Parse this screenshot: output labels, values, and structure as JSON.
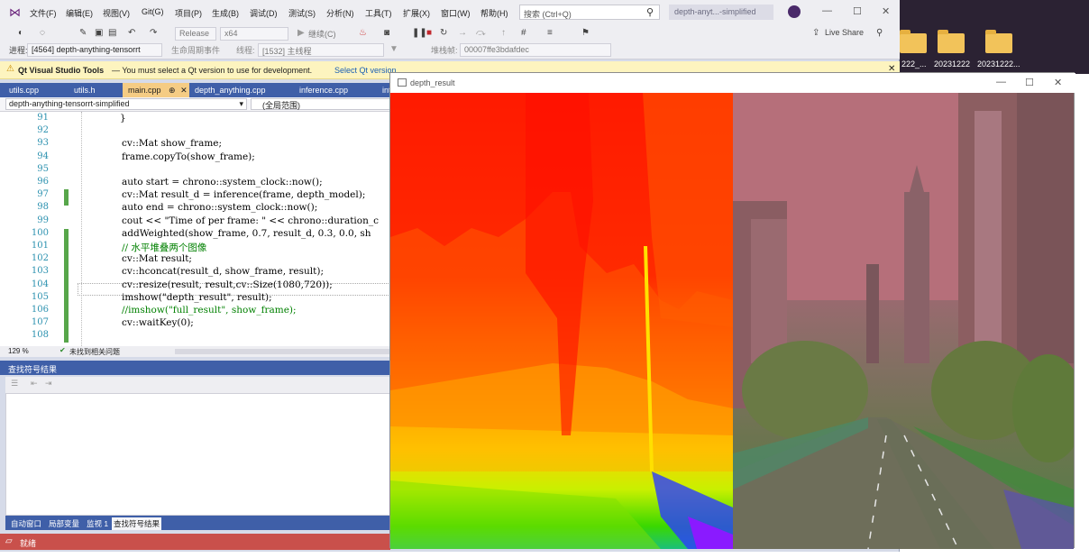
{
  "desktop": {
    "folders": [
      {
        "label": "222_..."
      },
      {
        "label": "20231222"
      },
      {
        "label": "20231222..."
      }
    ]
  },
  "vs": {
    "menu": [
      "文件(F)",
      "编辑(E)",
      "视图(V)",
      "Git(G)",
      "项目(P)",
      "生成(B)",
      "调试(D)",
      "测试(S)",
      "分析(N)",
      "工具(T)",
      "扩展(X)",
      "窗口(W)",
      "帮助(H)"
    ],
    "search_placeholder": "搜索 (Ctrl+Q)",
    "solution_name": "depth-anyt...-simplified",
    "live_share": "Live Share",
    "toolbar": {
      "config": "Release",
      "platform": "x64",
      "continue": "继续(C)",
      "process_label": "进程:",
      "process": "[4564] depth-anything-tensorrt",
      "lifecycle": "生命周期事件",
      "thread_label": "线程:",
      "thread": "[1532] 主线程",
      "stack_label": "堆栈帧:",
      "stack": "00007ffe3bdafdec"
    },
    "infobar": {
      "title": "Qt Visual Studio Tools",
      "message": "— You must select a Qt version to use for development.",
      "link": "Select Qt version..."
    },
    "tabs": [
      "utils.cpp",
      "utils.h",
      "main.cpp",
      "depth_anything.cpp",
      "inference.cpp",
      "int"
    ],
    "active_tab_pin": "⊕",
    "nav": {
      "project": "depth-anything-tensorrt-simplified",
      "scope": "(全局范围)"
    },
    "code_lines": [
      {
        "n": "91",
        "text": "}"
      },
      {
        "n": "92",
        "text": ""
      },
      {
        "n": "93",
        "text": "cv::Mat show_frame;"
      },
      {
        "n": "94",
        "text": "frame.copyTo(show_frame);"
      },
      {
        "n": "95",
        "text": ""
      },
      {
        "n": "96",
        "text": "auto start = chrono::system_clock::now();"
      },
      {
        "n": "97",
        "text": "cv::Mat result_d = inference(frame, depth_model);"
      },
      {
        "n": "98",
        "text": "auto end = chrono::system_clock::now();"
      },
      {
        "n": "99",
        "text": "cout << \"Time of per frame: \" << chrono::duration_c"
      },
      {
        "n": "100",
        "text": "addWeighted(show_frame, 0.7, result_d, 0.3, 0.0, sh"
      },
      {
        "n": "101",
        "text": "// 水平堆叠两个图像"
      },
      {
        "n": "102",
        "text": "cv::Mat result;"
      },
      {
        "n": "103",
        "text": "cv::hconcat(result_d, show_frame, result);"
      },
      {
        "n": "104",
        "text": "cv::resize(result, result,cv::Size(1080,720));"
      },
      {
        "n": "105",
        "text": "imshow(\"depth_result\", result);"
      },
      {
        "n": "106",
        "text": "//imshow(\"full_result\", show_frame);"
      },
      {
        "n": "107",
        "text": "cv::waitKey(0);"
      },
      {
        "n": "108",
        "text": ""
      }
    ],
    "zoom": "129 %",
    "issues": "未找到相关问题",
    "find_panel_title": "查找符号结果",
    "bottom_tabs": [
      "自动窗口",
      "局部变量",
      "监视 1",
      "查找符号结果"
    ],
    "status": "就绪"
  },
  "depth_window": {
    "title": "depth_result"
  }
}
